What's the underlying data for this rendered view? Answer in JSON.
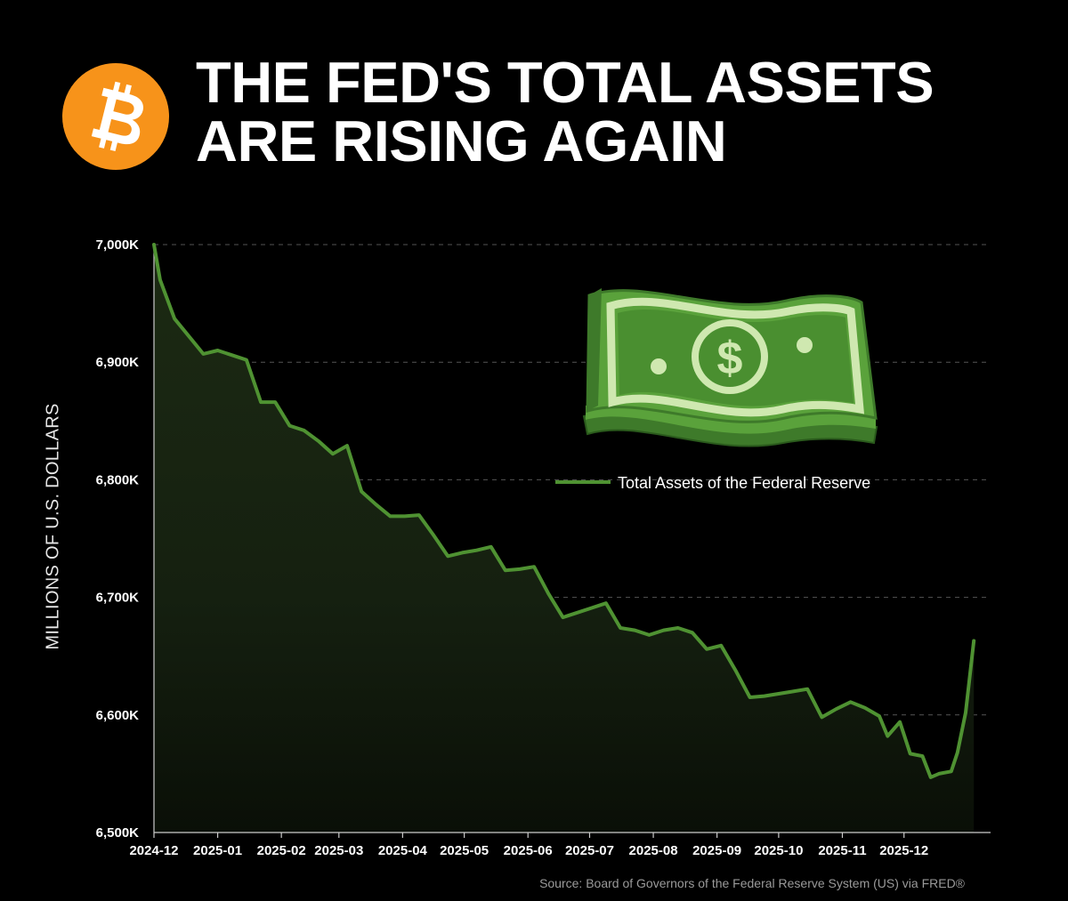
{
  "title": {
    "line1": "THE FED'S TOTAL ASSETS",
    "line2": "ARE RISING AGAIN"
  },
  "logo": {
    "icon": "bitcoin-icon",
    "color": "#F7931A"
  },
  "illustration": {
    "icon": "dollar-bill-stack-icon"
  },
  "colors": {
    "line": "#4f9232",
    "fill_top": "#1c2a13",
    "grid": "#555555",
    "background": "#000000",
    "text": "#ffffff"
  },
  "source": "Source: Board of Governors of the Federal Reserve System (US) via FRED®",
  "chart_data": {
    "type": "area",
    "title": "THE FED'S TOTAL ASSETS ARE RISING AGAIN",
    "ylabel": "MILLIONS OF U.S. DOLLARS",
    "xlabel": "",
    "ylim": [
      6500000,
      7000000
    ],
    "xlim": [
      "2024-12-01",
      "2025-12-31"
    ],
    "grid": "horizontal dashed",
    "legend": "right",
    "y_ticks": [
      {
        "value": 7000000,
        "label": "7,000K"
      },
      {
        "value": 6900000,
        "label": "6,900K"
      },
      {
        "value": 6800000,
        "label": "6,800K"
      },
      {
        "value": 6700000,
        "label": "6,700K"
      },
      {
        "value": 6600000,
        "label": "6,600K"
      },
      {
        "value": 6500000,
        "label": "6,500K"
      }
    ],
    "x_ticks": [
      {
        "date": "2024-12-01",
        "label": "2024-12"
      },
      {
        "date": "2025-01-01",
        "label": "2025-01"
      },
      {
        "date": "2025-02-01",
        "label": "2025-02"
      },
      {
        "date": "2025-03-01",
        "label": "2025-03"
      },
      {
        "date": "2025-04-01",
        "label": "2025-04"
      },
      {
        "date": "2025-05-01",
        "label": "2025-05"
      },
      {
        "date": "2025-06-01",
        "label": "2025-06"
      },
      {
        "date": "2025-07-01",
        "label": "2025-07"
      },
      {
        "date": "2025-08-01",
        "label": "2025-08"
      },
      {
        "date": "2025-09-01",
        "label": "2025-09"
      },
      {
        "date": "2025-10-01",
        "label": "2025-10"
      },
      {
        "date": "2025-11-01",
        "label": "2025-11"
      },
      {
        "date": "2025-12-01",
        "label": "2025-12"
      }
    ],
    "series": [
      {
        "name": "Total Assets of the Federal Reserve",
        "points": [
          [
            "2024-12-01",
            7000000
          ],
          [
            "2024-12-04",
            6970000
          ],
          [
            "2024-12-11",
            6937000
          ],
          [
            "2024-12-18",
            6922000
          ],
          [
            "2024-12-25",
            6907000
          ],
          [
            "2025-01-01",
            6910000
          ],
          [
            "2025-01-08",
            6906000
          ],
          [
            "2025-01-15",
            6902000
          ],
          [
            "2025-01-22",
            6866000
          ],
          [
            "2025-01-29",
            6866000
          ],
          [
            "2025-02-05",
            6846000
          ],
          [
            "2025-02-12",
            6842000
          ],
          [
            "2025-02-19",
            6833000
          ],
          [
            "2025-02-26",
            6822000
          ],
          [
            "2025-03-05",
            6829000
          ],
          [
            "2025-03-12",
            6790000
          ],
          [
            "2025-03-19",
            6779000
          ],
          [
            "2025-03-26",
            6769000
          ],
          [
            "2025-04-02",
            6769000
          ],
          [
            "2025-04-09",
            6770000
          ],
          [
            "2025-04-16",
            6753000
          ],
          [
            "2025-04-23",
            6735000
          ],
          [
            "2025-04-30",
            6738000
          ],
          [
            "2025-05-07",
            6740000
          ],
          [
            "2025-05-14",
            6743000
          ],
          [
            "2025-05-21",
            6723000
          ],
          [
            "2025-05-28",
            6724000
          ],
          [
            "2025-06-04",
            6726000
          ],
          [
            "2025-06-11",
            6703000
          ],
          [
            "2025-06-18",
            6683000
          ],
          [
            "2025-06-25",
            6687000
          ],
          [
            "2025-07-02",
            6691000
          ],
          [
            "2025-07-09",
            6695000
          ],
          [
            "2025-07-16",
            6674000
          ],
          [
            "2025-07-23",
            6672000
          ],
          [
            "2025-07-30",
            6668000
          ],
          [
            "2025-08-06",
            6672000
          ],
          [
            "2025-08-13",
            6674000
          ],
          [
            "2025-08-20",
            6670000
          ],
          [
            "2025-08-27",
            6656000
          ],
          [
            "2025-09-03",
            6659000
          ],
          [
            "2025-09-10",
            6638000
          ],
          [
            "2025-09-17",
            6615000
          ],
          [
            "2025-09-24",
            6616000
          ],
          [
            "2025-10-01",
            6618000
          ],
          [
            "2025-10-08",
            6620000
          ],
          [
            "2025-10-15",
            6622000
          ],
          [
            "2025-10-22",
            6598000
          ],
          [
            "2025-10-29",
            6605000
          ],
          [
            "2025-11-05",
            6611000
          ],
          [
            "2025-11-12",
            6606000
          ],
          [
            "2025-11-19",
            6599000
          ],
          [
            "2025-11-23",
            6582000
          ],
          [
            "2025-11-29",
            6594000
          ],
          [
            "2025-12-04",
            6567000
          ],
          [
            "2025-12-10",
            6565000
          ],
          [
            "2025-12-14",
            6547000
          ],
          [
            "2025-12-18",
            6550000
          ],
          [
            "2025-12-24",
            6552000
          ],
          [
            "2025-12-27",
            6568000
          ],
          [
            "2025-12-31",
            6602000
          ],
          [
            "2026-01-04",
            6663000
          ]
        ]
      }
    ]
  }
}
